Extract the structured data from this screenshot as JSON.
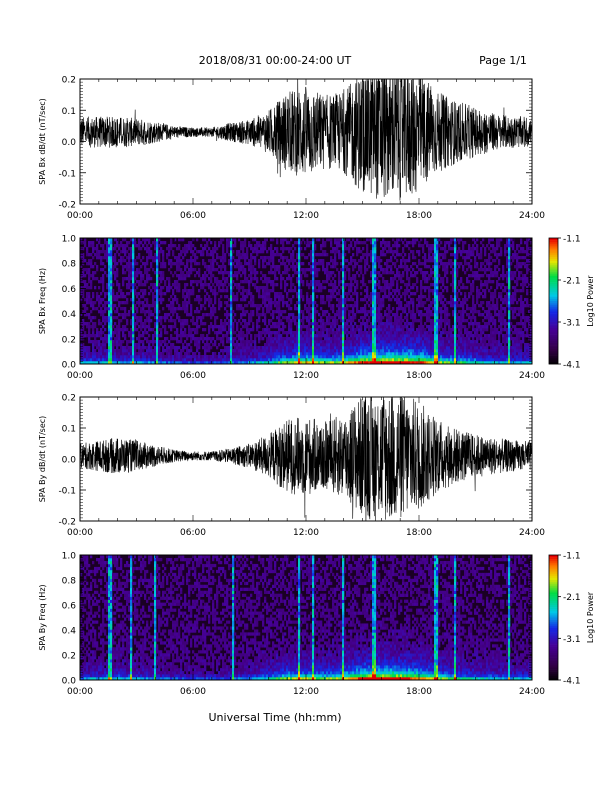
{
  "header": {
    "title": "2018/08/31   00:00-24:00 UT",
    "page": "Page 1/1"
  },
  "footer": {
    "xlabel": "Universal Time (hh:mm)"
  },
  "chart_data": [
    {
      "type": "line",
      "panel": "SPA Bx waveform",
      "ylabel": "SPA Bx dB/dt (nT/sec)",
      "ylim": [
        -0.2,
        0.2
      ],
      "yticks": [
        "0.2",
        "0.1",
        "0.0",
        "-0.1",
        "-0.2"
      ],
      "xlim": [
        "00:00",
        "24:00"
      ],
      "xticks": [
        "00:00",
        "06:00",
        "12:00",
        "18:00",
        "24:00"
      ],
      "envelope": {
        "hours": [
          0,
          1,
          2,
          3,
          4,
          5,
          6,
          7,
          8,
          9,
          10,
          11,
          12,
          13,
          14,
          15,
          16,
          17,
          18,
          19,
          20,
          21,
          22,
          23,
          24
        ],
        "amplitude": [
          0.05,
          0.05,
          0.05,
          0.045,
          0.035,
          0.02,
          0.015,
          0.015,
          0.03,
          0.04,
          0.07,
          0.13,
          0.15,
          0.12,
          0.13,
          0.2,
          0.22,
          0.22,
          0.2,
          0.13,
          0.1,
          0.08,
          0.06,
          0.05,
          0.05
        ],
        "offset": 0.03
      }
    },
    {
      "type": "heatmap",
      "panel": "SPA Bx spectrogram",
      "ylabel": "SPA Bx Freq (Hz)",
      "ylim": [
        0.0,
        1.0
      ],
      "yticks": [
        "1.0",
        "0.8",
        "0.6",
        "0.4",
        "0.2",
        "0.0"
      ],
      "xlim": [
        "00:00",
        "24:00"
      ],
      "xticks": [
        "00:00",
        "06:00",
        "12:00",
        "18:00",
        "24:00"
      ],
      "colorbar": {
        "label": "Log10 Power",
        "range": [
          -4.1,
          -1.1
        ],
        "ticks": [
          "-1.1",
          "-2.1",
          "-3.1",
          "-4.1"
        ]
      },
      "bright_columns_hours": [
        1.6,
        2.8,
        4.1,
        8.0,
        11.6,
        12.4,
        14.0,
        15.6,
        18.9,
        19.9,
        22.8
      ]
    },
    {
      "type": "line",
      "panel": "SPA By waveform",
      "ylabel": "SPA By dB/dt (nT/sec)",
      "ylim": [
        -0.2,
        0.2
      ],
      "yticks": [
        "0.2",
        "0.1",
        "0.0",
        "-0.1",
        "-0.2"
      ],
      "xlim": [
        "00:00",
        "24:00"
      ],
      "xticks": [
        "00:00",
        "06:00",
        "12:00",
        "18:00",
        "24:00"
      ],
      "envelope": {
        "hours": [
          0,
          1,
          2,
          3,
          4,
          5,
          6,
          7,
          8,
          9,
          10,
          11,
          12,
          13,
          14,
          15,
          16,
          17,
          18,
          19,
          20,
          21,
          22,
          23,
          24
        ],
        "amplitude": [
          0.04,
          0.05,
          0.06,
          0.05,
          0.035,
          0.02,
          0.015,
          0.015,
          0.025,
          0.04,
          0.07,
          0.12,
          0.13,
          0.11,
          0.14,
          0.2,
          0.22,
          0.21,
          0.18,
          0.12,
          0.09,
          0.07,
          0.06,
          0.05,
          0.05
        ],
        "offset": 0.01
      }
    },
    {
      "type": "heatmap",
      "panel": "SPA By spectrogram",
      "ylabel": "SPA By Freq (Hz)",
      "ylim": [
        0.0,
        1.0
      ],
      "yticks": [
        "1.0",
        "0.8",
        "0.6",
        "0.4",
        "0.2",
        "0.0"
      ],
      "xlim": [
        "00:00",
        "24:00"
      ],
      "xticks": [
        "00:00",
        "06:00",
        "12:00",
        "18:00",
        "24:00"
      ],
      "colorbar": {
        "label": "Log10 Power",
        "range": [
          -4.1,
          -1.1
        ],
        "ticks": [
          "-1.1",
          "-2.1",
          "-3.1",
          "-4.1"
        ]
      },
      "bright_columns_hours": [
        1.6,
        2.7,
        4.0,
        8.1,
        11.6,
        12.4,
        14.0,
        15.6,
        18.9,
        19.9,
        22.8
      ]
    }
  ]
}
